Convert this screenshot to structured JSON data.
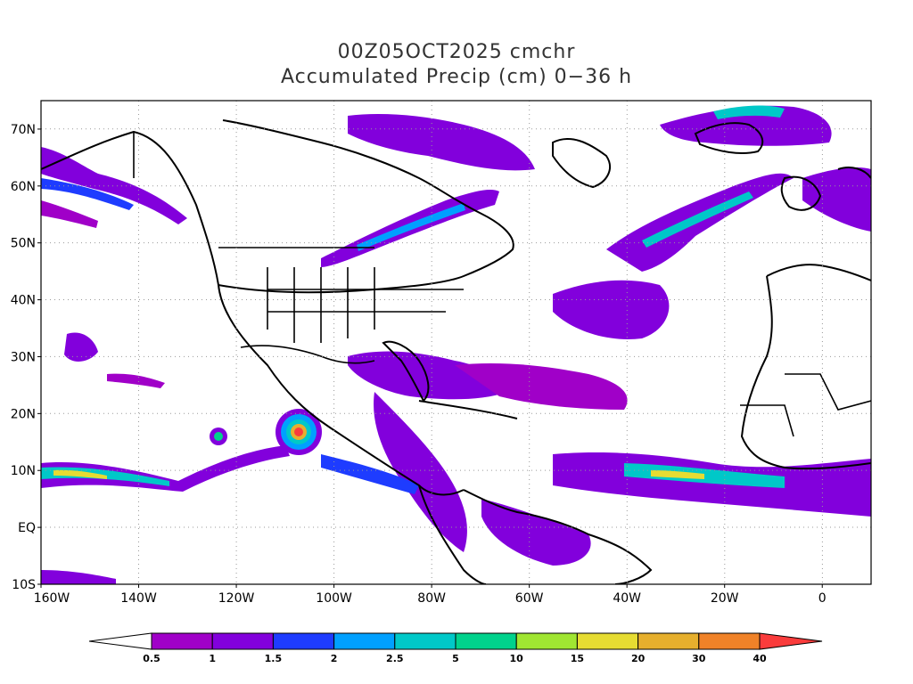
{
  "title": {
    "line1": "00Z05OCT2025 cmchr",
    "line2": "Accumulated Precip (cm) 0−36 h"
  },
  "map": {
    "extent": {
      "lon": [
        -160,
        10
      ],
      "lat": [
        -10,
        75
      ]
    },
    "lat_ticks": [
      {
        "value": 70,
        "label": "70N"
      },
      {
        "value": 60,
        "label": "60N"
      },
      {
        "value": 50,
        "label": "50N"
      },
      {
        "value": 40,
        "label": "40N"
      },
      {
        "value": 30,
        "label": "30N"
      },
      {
        "value": 20,
        "label": "20N"
      },
      {
        "value": 10,
        "label": "10N"
      },
      {
        "value": 0,
        "label": "EQ"
      },
      {
        "value": -10,
        "label": "10S"
      }
    ],
    "lon_ticks": [
      {
        "value": -160,
        "label": "160W"
      },
      {
        "value": -140,
        "label": "140W"
      },
      {
        "value": -120,
        "label": "120W"
      },
      {
        "value": -100,
        "label": "100W"
      },
      {
        "value": -80,
        "label": "80W"
      },
      {
        "value": -60,
        "label": "60W"
      },
      {
        "value": -40,
        "label": "40W"
      },
      {
        "value": -20,
        "label": "20W"
      },
      {
        "value": 0,
        "label": "0"
      }
    ],
    "grid": "dotted"
  },
  "colorbar": {
    "labels": [
      "0.5",
      "1",
      "1.5",
      "2",
      "2.5",
      "5",
      "10",
      "15",
      "20",
      "30",
      "40"
    ],
    "colors": [
      "#a000c8",
      "#8200dc",
      "#1e3cff",
      "#00a0ff",
      "#00c8c8",
      "#00d28c",
      "#a0e632",
      "#e6dc32",
      "#e6af2d",
      "#f08228",
      "#fa3c3c"
    ]
  }
}
